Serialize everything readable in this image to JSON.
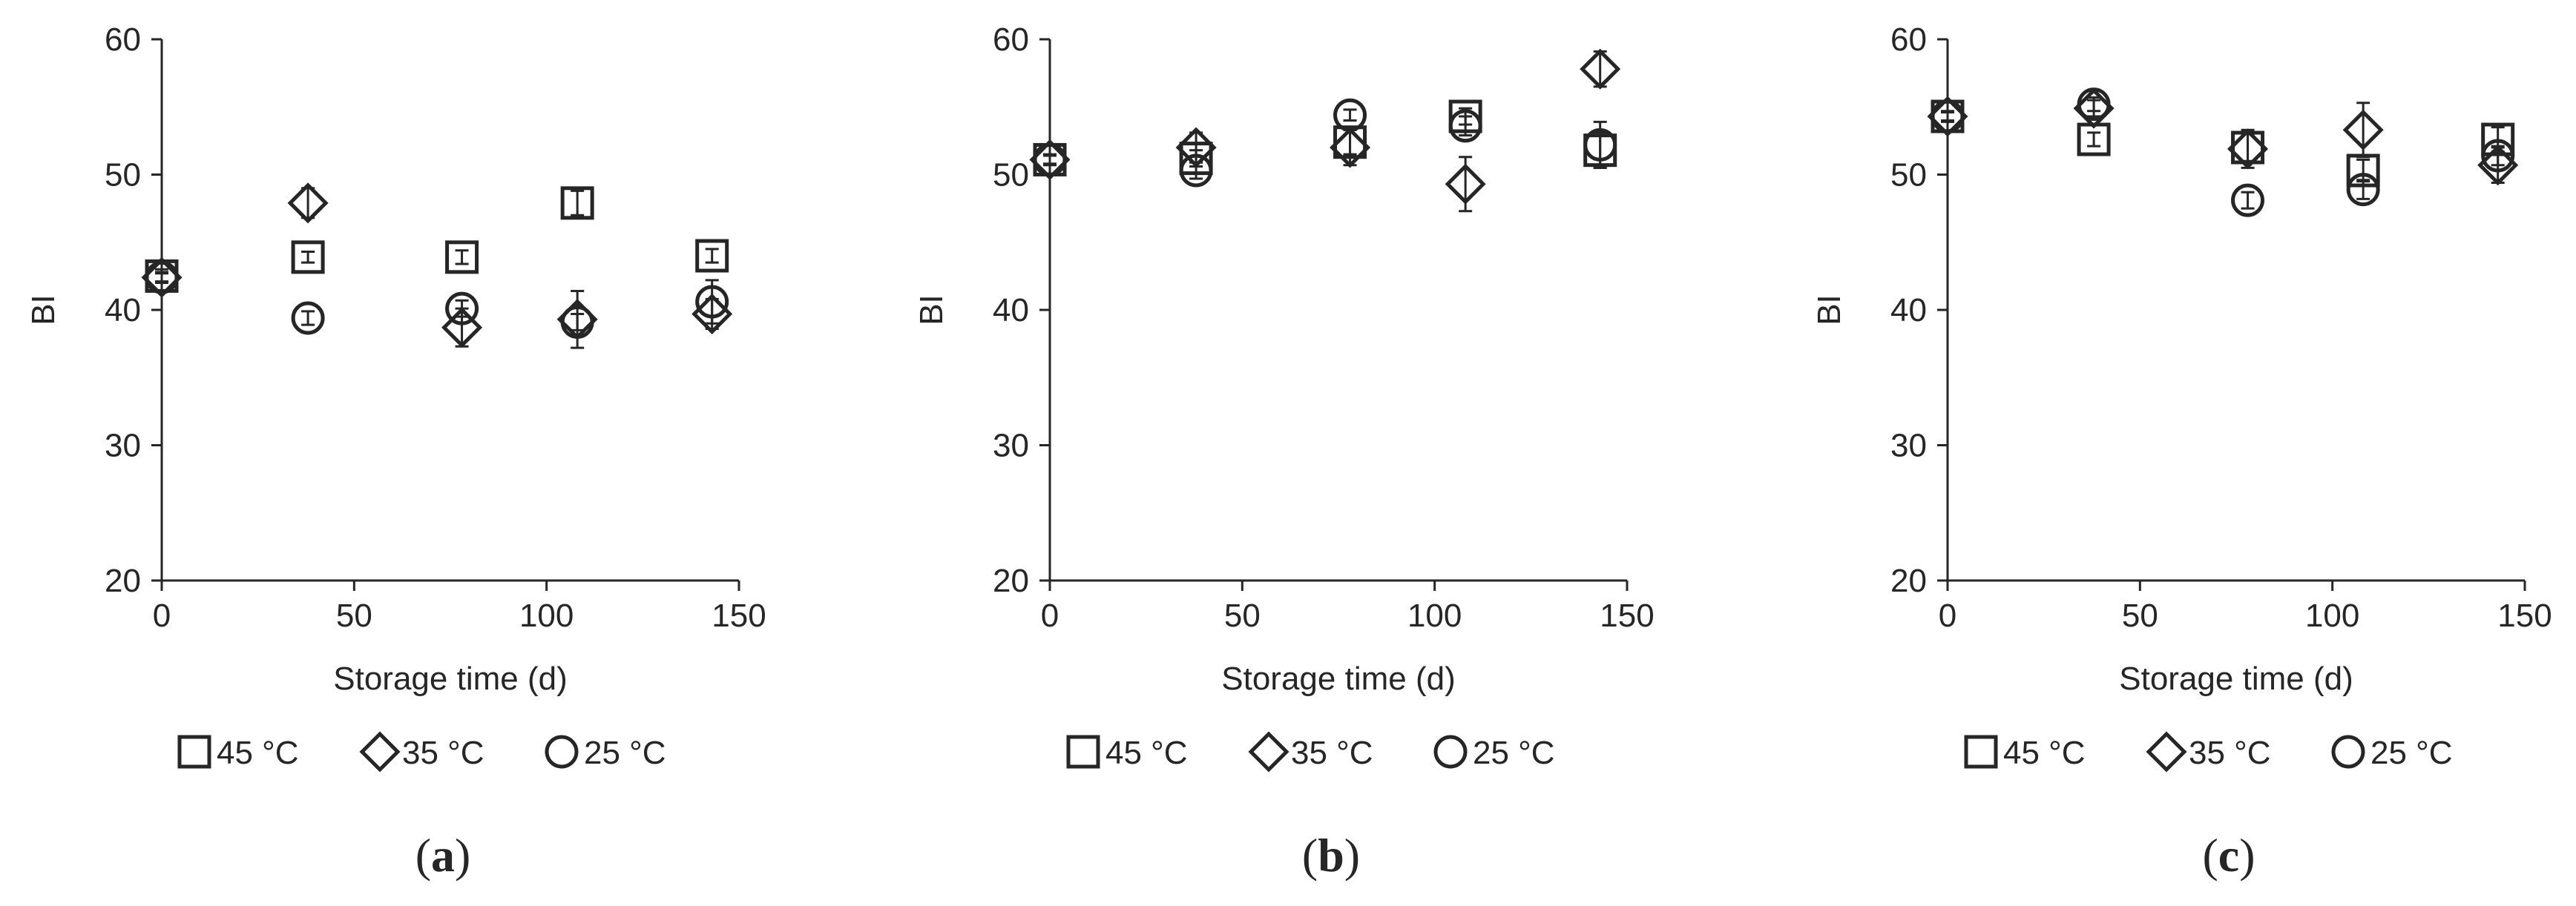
{
  "legend_labels": [
    "45 °C",
    "35 °C",
    "25 °C"
  ],
  "chart_data": [
    {
      "type": "scatter",
      "panel_label": "a",
      "xlabel": "Storage time (d)",
      "ylabel": "BI",
      "xlim": [
        0,
        150
      ],
      "ylim": [
        20,
        60
      ],
      "xticks": [
        0,
        50,
        100,
        150
      ],
      "yticks": [
        20,
        30,
        40,
        50,
        60
      ],
      "grid": false,
      "legend": "bottom",
      "series": [
        {
          "name": "45 °C",
          "marker": "square",
          "x": [
            0,
            38,
            78,
            108,
            143
          ],
          "y": [
            42.5,
            43.9,
            43.9,
            47.9,
            44.0
          ],
          "err": [
            0.5,
            0.4,
            0.5,
            0.9,
            0.5
          ]
        },
        {
          "name": "35 °C",
          "marker": "diamond",
          "x": [
            0,
            38,
            78,
            108,
            143
          ],
          "y": [
            42.4,
            47.9,
            38.7,
            39.3,
            39.7
          ],
          "err": [
            0.4,
            1.1,
            1.4,
            2.1,
            1.1
          ]
        },
        {
          "name": "25 °C",
          "marker": "circle",
          "x": [
            0,
            38,
            78,
            108,
            143
          ],
          "y": [
            42.4,
            39.4,
            40.1,
            39.1,
            40.6
          ],
          "err": [
            0.3,
            0.5,
            0.6,
            0.6,
            1.6
          ]
        }
      ]
    },
    {
      "type": "scatter",
      "panel_label": "b",
      "xlabel": "Storage time (d)",
      "ylabel": "BI",
      "xlim": [
        0,
        150
      ],
      "ylim": [
        20,
        60
      ],
      "xticks": [
        0,
        50,
        100,
        150
      ],
      "yticks": [
        20,
        30,
        40,
        50,
        60
      ],
      "grid": false,
      "legend": "bottom",
      "series": [
        {
          "name": "45 °C",
          "marker": "square",
          "x": [
            0,
            38,
            78,
            108,
            143
          ],
          "y": [
            51.1,
            51.2,
            52.4,
            54.3,
            51.8
          ],
          "err": [
            0.4,
            0.6,
            0.9,
            0.6,
            1.3
          ]
        },
        {
          "name": "35 °C",
          "marker": "diamond",
          "x": [
            0,
            38,
            78,
            108,
            143
          ],
          "y": [
            51.1,
            52.0,
            52.0,
            49.3,
            57.8
          ],
          "err": [
            0.3,
            1.1,
            1.3,
            2.0,
            1.3
          ]
        },
        {
          "name": "25 °C",
          "marker": "circle",
          "x": [
            0,
            38,
            78,
            108,
            143
          ],
          "y": [
            51.1,
            50.3,
            54.4,
            53.6,
            52.2
          ],
          "err": [
            0.3,
            0.6,
            0.4,
            0.7,
            1.7
          ]
        }
      ]
    },
    {
      "type": "scatter",
      "panel_label": "c",
      "xlabel": "Storage time (d)",
      "ylabel": "BI",
      "xlim": [
        0,
        150
      ],
      "ylim": [
        20,
        60
      ],
      "xticks": [
        0,
        50,
        100,
        150
      ],
      "yticks": [
        20,
        30,
        40,
        50,
        60
      ],
      "grid": false,
      "legend": "bottom",
      "series": [
        {
          "name": "45 °C",
          "marker": "square",
          "x": [
            0,
            38,
            78,
            108,
            143
          ],
          "y": [
            54.3,
            52.6,
            52.0,
            50.3,
            52.6
          ],
          "err": [
            0.4,
            0.5,
            1.0,
            0.8,
            0.9
          ]
        },
        {
          "name": "35 °C",
          "marker": "diamond",
          "x": [
            0,
            38,
            78,
            108,
            143
          ],
          "y": [
            54.3,
            54.9,
            51.9,
            53.3,
            50.7
          ],
          "err": [
            0.3,
            0.6,
            1.4,
            2.0,
            1.3
          ]
        },
        {
          "name": "25 °C",
          "marker": "circle",
          "x": [
            0,
            38,
            78,
            108,
            143
          ],
          "y": [
            54.3,
            55.2,
            48.1,
            48.9,
            51.4
          ],
          "err": [
            0.3,
            0.5,
            0.6,
            0.7,
            0.7
          ]
        }
      ]
    }
  ]
}
